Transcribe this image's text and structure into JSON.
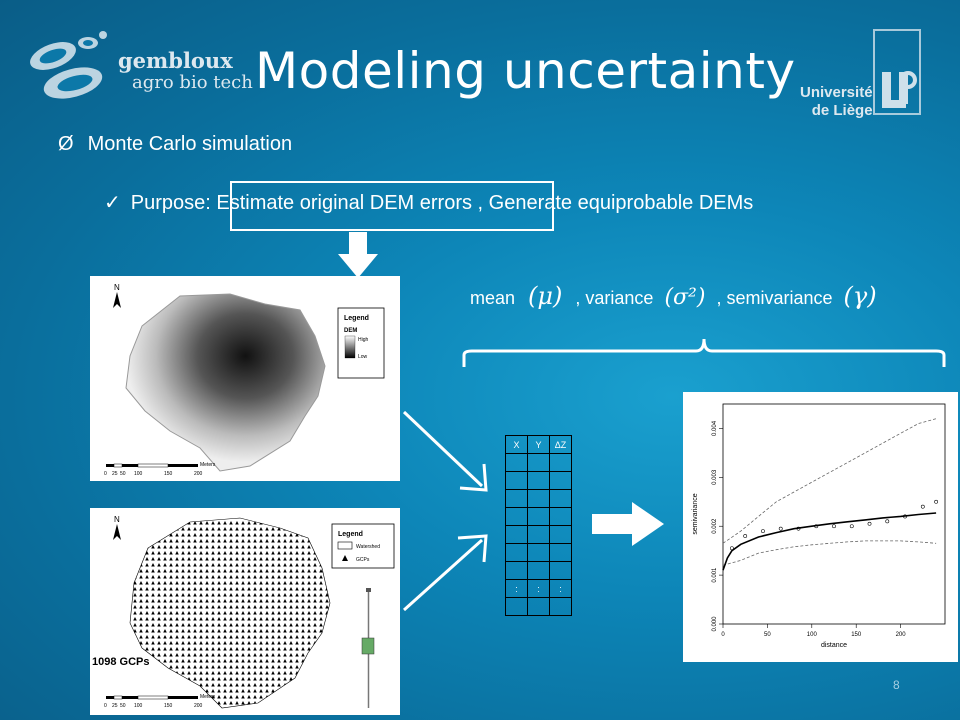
{
  "title": "Modeling uncertainty",
  "logo_left": {
    "line1": "gembloux",
    "line2": "agro bio tech"
  },
  "logo_right": {
    "line1": "Université",
    "line2": "de Liège"
  },
  "bullet1": {
    "marker": "Ø",
    "text": "Monte Carlo simulation"
  },
  "bullet2": {
    "marker": "✓",
    "text": "Purpose: Estimate original DEM errors , Generate equiprobable DEMs"
  },
  "formula": {
    "mean": "mean",
    "mean_sym": "(μ)",
    "variance": ", variance",
    "variance_sym": "(σ²)",
    "semivariance": ", semivariance",
    "semivariance_sym": "(γ)"
  },
  "dem_map": {
    "north": "N",
    "legend_title": "Legend",
    "legend_item": "DEM",
    "high": "High",
    "low": "Low",
    "scale_ticks": [
      "0",
      "25",
      "50",
      "100",
      "150",
      "200"
    ],
    "scale_unit": "Meters"
  },
  "gcp_map": {
    "north": "N",
    "legend_title": "Legend",
    "watershed": "Watershed",
    "gcps": "GCPs",
    "scale_ticks": [
      "0",
      "25",
      "50",
      "100",
      "150",
      "200"
    ],
    "scale_unit": "Meters",
    "count_label": "1098 GCPs"
  },
  "table": {
    "headers": [
      "X",
      "Y",
      "ΔZ"
    ],
    "ellipsis": ":"
  },
  "chart_data": {
    "type": "scatter",
    "xlabel": "distance",
    "ylabel": "semivariance",
    "xlim": [
      0,
      250
    ],
    "ylim": [
      0,
      0.0045
    ],
    "x_ticks": [
      0,
      50,
      100,
      150,
      200
    ],
    "y_ticks": [
      "0.000",
      "0.001",
      "0.002",
      "0.003",
      "0.004"
    ],
    "points": {
      "x": [
        10,
        25,
        45,
        65,
        85,
        105,
        125,
        145,
        165,
        185,
        205,
        225,
        240
      ],
      "y": [
        0.00155,
        0.0018,
        0.0019,
        0.00195,
        0.00195,
        0.002,
        0.002,
        0.002,
        0.00205,
        0.0021,
        0.0022,
        0.0024,
        0.0025
      ]
    },
    "model": {
      "x": [
        0,
        5,
        10,
        20,
        40,
        60,
        80,
        100,
        120,
        140,
        160,
        180,
        200,
        220,
        240
      ],
      "y": [
        0.0011,
        0.00135,
        0.0015,
        0.00163,
        0.00178,
        0.00187,
        0.00195,
        0.002,
        0.00205,
        0.00209,
        0.00213,
        0.00217,
        0.0022,
        0.00224,
        0.00227
      ]
    },
    "upper_envelope": {
      "x": [
        0,
        20,
        40,
        60,
        80,
        100,
        120,
        140,
        160,
        180,
        200,
        220,
        240
      ],
      "y": [
        0.00165,
        0.0019,
        0.0022,
        0.0025,
        0.0027,
        0.0029,
        0.0031,
        0.0033,
        0.0035,
        0.0037,
        0.0039,
        0.0041,
        0.0042
      ]
    },
    "lower_envelope": {
      "x": [
        0,
        20,
        40,
        60,
        80,
        100,
        120,
        140,
        160,
        180,
        200,
        220,
        240
      ],
      "y": [
        0.0012,
        0.0013,
        0.00145,
        0.00152,
        0.00158,
        0.00162,
        0.00165,
        0.00168,
        0.0017,
        0.0017,
        0.0017,
        0.00168,
        0.00165
      ]
    }
  },
  "page_number": "8"
}
